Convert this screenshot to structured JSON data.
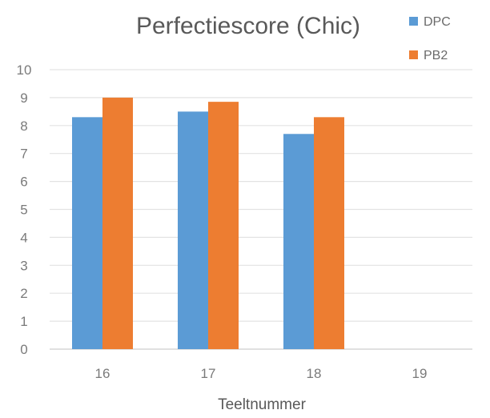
{
  "chart_data": {
    "type": "bar",
    "title": "Perfectiescore (Chic)",
    "xlabel": "Teeltnummer",
    "ylabel": "",
    "categories": [
      "16",
      "17",
      "18",
      "19"
    ],
    "series": [
      {
        "name": "DPC",
        "color": "#5b9bd5",
        "values": [
          8.3,
          8.5,
          7.7,
          null
        ]
      },
      {
        "name": "PB2",
        "color": "#ed7d31",
        "values": [
          9.0,
          8.85,
          8.3,
          null
        ]
      }
    ],
    "ylim": [
      0,
      10
    ],
    "yticks": [
      "0",
      "1",
      "2",
      "3",
      "4",
      "5",
      "6",
      "7",
      "8",
      "9",
      "10"
    ],
    "grid": true,
    "legend_position": "top-right"
  }
}
